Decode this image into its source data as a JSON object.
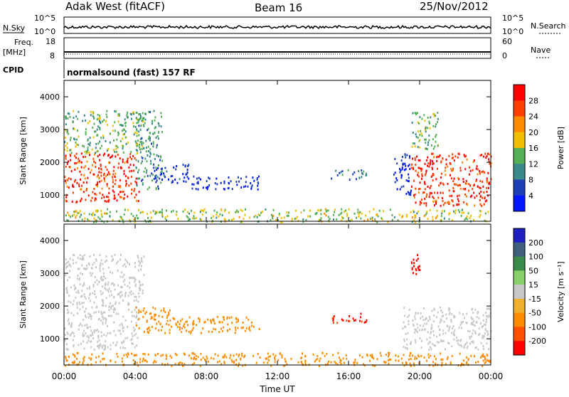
{
  "header": {
    "station": "Adak West (fitACF)",
    "beam": "Beam 16",
    "date": "25/Nov/2012"
  },
  "panels": {
    "nsky": {
      "left_label": "N.Sky",
      "right_label": "N.Search",
      "left_ticks": [
        "10^5",
        "10^0"
      ],
      "right_ticks": [
        "10^5",
        "10^0"
      ]
    },
    "freq": {
      "left_label_1": "Freq.",
      "left_label_2": "[MHz]",
      "right_label": "Nave",
      "left_ticks": [
        "18",
        "8"
      ],
      "right_ticks": [
        "60",
        "0"
      ]
    },
    "cpid": {
      "label": "CPID",
      "text": "normalsound (fast) 157 RF"
    }
  },
  "colors": {
    "power_scale": [
      "#0018ff",
      "#1f3fb8",
      "#3a8a8a",
      "#55b055",
      "#f0c000",
      "#ff8c00",
      "#ff4000",
      "#ff0000"
    ],
    "velocity_scale": [
      "#2020c0",
      "#406080",
      "#3a8a4a",
      "#8ad06a",
      "#c8c8c8",
      "#f0b030",
      "#ff8c00",
      "#ff5000",
      "#ff0000"
    ]
  },
  "chart_data": [
    {
      "type": "heatmap",
      "panel": "power",
      "xlabel": "",
      "ylabel": "Slant Range [km]",
      "xlim": [
        0,
        24
      ],
      "ylim": [
        200,
        4500
      ],
      "x_ticks": [
        "00:00",
        "04:00",
        "08:00",
        "12:00",
        "16:00",
        "20:00",
        "00:00"
      ],
      "y_ticks": [
        "1000",
        "2000",
        "3000",
        "4000"
      ],
      "colorbar_label": "Power [dB]",
      "colorbar_ticks": [
        "4",
        "8",
        "12",
        "16",
        "20",
        "24",
        "28"
      ],
      "regions": [
        {
          "t": [
            0.0,
            4.2
          ],
          "r": [
            800,
            2300
          ],
          "value": 26
        },
        {
          "t": [
            0.0,
            4.5
          ],
          "r": [
            2300,
            3600
          ],
          "value": 14
        },
        {
          "t": [
            4.0,
            5.5
          ],
          "r": [
            1200,
            3600
          ],
          "value": 12
        },
        {
          "t": [
            5.0,
            7.0
          ],
          "r": [
            1400,
            2000
          ],
          "value": 6
        },
        {
          "t": [
            7.0,
            11.0
          ],
          "r": [
            1200,
            1600
          ],
          "value": 5
        },
        {
          "t": [
            15.0,
            17.0
          ],
          "r": [
            1500,
            1800
          ],
          "value": 10
        },
        {
          "t": [
            18.5,
            19.5
          ],
          "r": [
            1000,
            2300
          ],
          "value": 4
        },
        {
          "t": [
            19.5,
            24.0
          ],
          "r": [
            700,
            2300
          ],
          "value": 26
        },
        {
          "t": [
            19.5,
            21.0
          ],
          "r": [
            2400,
            3600
          ],
          "value": 14
        },
        {
          "t": [
            0.0,
            24.0
          ],
          "r": [
            200,
            600
          ],
          "value": 16
        }
      ]
    },
    {
      "type": "heatmap",
      "panel": "velocity",
      "xlabel": "Time UT",
      "ylabel": "Slant Range [km]",
      "xlim": [
        0,
        24
      ],
      "ylim": [
        200,
        4500
      ],
      "x_ticks": [
        "00:00",
        "04:00",
        "08:00",
        "12:00",
        "16:00",
        "20:00",
        "00:00"
      ],
      "y_ticks": [
        "1000",
        "2000",
        "3000",
        "4000"
      ],
      "colorbar_label": "Velocity [m s⁻¹]",
      "colorbar_ticks": [
        "200",
        "100",
        "50",
        "15",
        "-15",
        "-50",
        "-100",
        "-200"
      ],
      "regions": [
        {
          "t": [
            0.0,
            4.2
          ],
          "r": [
            700,
            2400
          ],
          "value": 0
        },
        {
          "t": [
            0.0,
            4.5
          ],
          "r": [
            2400,
            3600
          ],
          "value": 0
        },
        {
          "t": [
            4.0,
            6.0
          ],
          "r": [
            1200,
            2000
          ],
          "value": -60
        },
        {
          "t": [
            6.0,
            11.0
          ],
          "r": [
            1200,
            1700
          ],
          "value": -60
        },
        {
          "t": [
            15.0,
            17.0
          ],
          "r": [
            1500,
            1800
          ],
          "value": -150
        },
        {
          "t": [
            19.0,
            24.0
          ],
          "r": [
            700,
            2000
          ],
          "value": 0
        },
        {
          "t": [
            19.5,
            20.0
          ],
          "r": [
            3000,
            3600
          ],
          "value": -200
        },
        {
          "t": [
            0.0,
            24.0
          ],
          "r": [
            200,
            600
          ],
          "value": -40
        }
      ]
    }
  ]
}
